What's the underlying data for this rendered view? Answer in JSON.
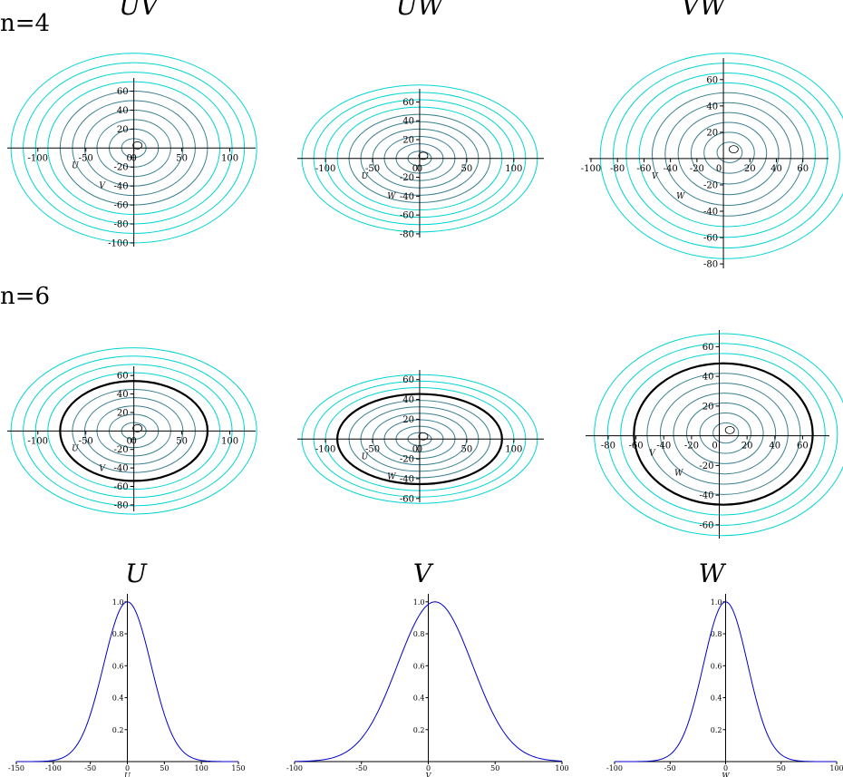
{
  "rows": {
    "r4": "n=4",
    "r6": "n=6"
  },
  "colors": {
    "contour": "#00d4d4",
    "contour_inner": "#3a7f8f",
    "highlight": "#000000",
    "density": "#0000cc",
    "axis": "#000000"
  },
  "chart_data": [
    {
      "type": "contour",
      "title": "UV",
      "row": "n=4",
      "xlabel": "U",
      "ylabel": "V",
      "x_ticks": [
        -100,
        -50,
        0,
        50,
        100
      ],
      "y_ticks": [
        -100,
        -80,
        -60,
        -40,
        -20,
        20,
        40,
        60
      ],
      "xlim": [
        -130,
        125
      ],
      "ylim": [
        -102,
        72
      ],
      "center": [
        0,
        0
      ],
      "rx_max": 128,
      "ry_max": 100,
      "rings": 10,
      "highlight": null
    },
    {
      "type": "contour",
      "title": "UW",
      "row": "n=4",
      "xlabel": "U",
      "ylabel": "W",
      "x_ticks": [
        -100,
        -50,
        0,
        50,
        100
      ],
      "y_ticks": [
        -80,
        -60,
        -40,
        -20,
        20,
        40,
        60
      ],
      "xlim": [
        -128,
        130
      ],
      "ylim": [
        -82,
        72
      ],
      "center": [
        0,
        0
      ],
      "rx_max": 125,
      "ry_max": 78,
      "rings": 10,
      "highlight": null
    },
    {
      "type": "contour",
      "title": "VW",
      "row": "n=4",
      "xlabel": "V",
      "ylabel": "W",
      "x_ticks": [
        -100,
        -80,
        -60,
        -40,
        -20,
        20,
        40,
        60
      ],
      "y_ticks": [
        -80,
        -60,
        -40,
        -20,
        20,
        40,
        60
      ],
      "xlim": [
        -100,
        78
      ],
      "ylim": [
        -82,
        75
      ],
      "center": [
        5,
        5
      ],
      "rx_max": 95,
      "ry_max": 78,
      "rings": 10,
      "highlight": null
    },
    {
      "type": "contour",
      "title": "",
      "row": "n=6",
      "xlabel": "U",
      "ylabel": "V",
      "x_ticks": [
        -100,
        -50,
        0,
        50,
        100
      ],
      "y_ticks": [
        -80,
        -60,
        -40,
        -20,
        20,
        40,
        60
      ],
      "xlim": [
        -130,
        125
      ],
      "ylim": [
        -85,
        68
      ],
      "center": [
        0,
        0
      ],
      "rx_max": 128,
      "ry_max": 90,
      "rings": 10,
      "highlight": 6
    },
    {
      "type": "contour",
      "title": "",
      "row": "n=6",
      "xlabel": "U",
      "ylabel": "W",
      "x_ticks": [
        -100,
        -50,
        0,
        50,
        100
      ],
      "y_ticks": [
        -60,
        -40,
        -20,
        20,
        40,
        60
      ],
      "xlim": [
        -128,
        130
      ],
      "ylim": [
        -62,
        68
      ],
      "center": [
        0,
        0
      ],
      "rx_max": 125,
      "ry_max": 65,
      "rings": 10,
      "highlight": 7
    },
    {
      "type": "contour",
      "title": "",
      "row": "n=6",
      "xlabel": "V",
      "ylabel": "W",
      "x_ticks": [
        -80,
        -60,
        -40,
        -20,
        20,
        40,
        60
      ],
      "y_ticks": [
        -60,
        -40,
        -20,
        20,
        40,
        60
      ],
      "xlim": [
        -95,
        78
      ],
      "ylim": [
        -68,
        70
      ],
      "center": [
        5,
        2
      ],
      "rx_max": 92,
      "ry_max": 68,
      "rings": 10,
      "highlight": 7
    },
    {
      "type": "line",
      "title": "U",
      "xlabel": "U",
      "x_ticks": [
        -150,
        -100,
        -50,
        0,
        50,
        100,
        150
      ],
      "y_ticks": [
        0.2,
        0.4,
        0.6,
        0.8,
        1.0
      ],
      "xlim": [
        -150,
        150
      ],
      "ylim": [
        0,
        1.05
      ],
      "curve": {
        "mu": 0,
        "sigma": 32
      }
    },
    {
      "type": "line",
      "title": "V",
      "xlabel": "V",
      "x_ticks": [
        -100,
        -50,
        0,
        50,
        100
      ],
      "y_ticks": [
        0.2,
        0.4,
        0.6,
        0.8,
        1.0
      ],
      "xlim": [
        -100,
        100
      ],
      "ylim": [
        0,
        1.05
      ],
      "curve": {
        "mu": 5,
        "sigma": 28
      }
    },
    {
      "type": "line",
      "title": "W",
      "xlabel": "W",
      "x_ticks": [
        -100,
        -50,
        0,
        50,
        100
      ],
      "y_ticks": [
        0.2,
        0.4,
        0.6,
        0.8,
        1.0
      ],
      "xlim": [
        -100,
        100
      ],
      "ylim": [
        0,
        1.05
      ],
      "curve": {
        "mu": 0,
        "sigma": 20
      }
    }
  ]
}
